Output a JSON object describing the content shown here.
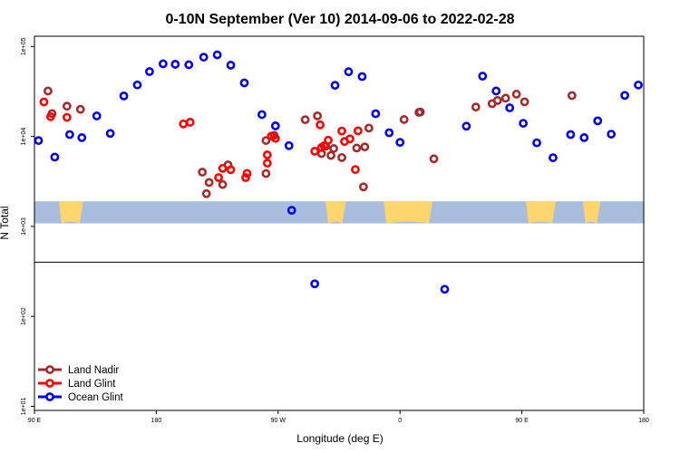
{
  "chart_data": {
    "type": "scatter",
    "title": "0-10N September (Ver 10)   2014-09-06 to 2022-02-28",
    "xlabel": "Longitude (deg E)",
    "ylabel": "N Total",
    "x_tick_labels": [
      "90 E",
      "180",
      "90 W",
      "0",
      "90 E",
      "180"
    ],
    "x_tick_positions_deg_e": [
      90,
      180,
      270,
      360,
      450,
      540
    ],
    "xlim": [
      90,
      540
    ],
    "y_scale": "log",
    "ylim": [
      9,
      130000
    ],
    "y_tick_labels": [
      "1e+01",
      "1e+02",
      "1e+03",
      "1e+04",
      "1e+05"
    ],
    "y_tick_values": [
      10,
      100,
      1000,
      10000,
      100000
    ],
    "reference_line_y": 400,
    "band_y_range": [
      1080,
      1900
    ],
    "grid": false,
    "legend_position": "bottom-left",
    "colors": {
      "band": "#a9bddd",
      "land": "#ffd66e",
      "land_nadir": "#a52a2a",
      "land_glint": "#ff0000",
      "ocean_glint": "#0000ee"
    },
    "series": [
      {
        "name": "Land Nadir",
        "color": "#a52a2a",
        "points": [
          [
            103,
            17960
          ],
          [
            100,
            32000
          ],
          [
            114,
            21700
          ],
          [
            124,
            20000
          ],
          [
            217,
            2310
          ],
          [
            229,
            2920
          ],
          [
            219,
            3080
          ],
          [
            261,
            3870
          ],
          [
            214,
            4010
          ],
          [
            233,
            4830
          ],
          [
            333,
            2750
          ],
          [
            385,
            5640
          ],
          [
            317,
            5830
          ],
          [
            309,
            6150
          ],
          [
            302,
            6450
          ],
          [
            261,
            9010
          ],
          [
            267,
            10270
          ],
          [
            328,
            7430
          ],
          [
            311,
            7340
          ],
          [
            305,
            7780
          ],
          [
            290,
            15340
          ],
          [
            299,
            16930
          ],
          [
            334,
            7650
          ],
          [
            337,
            12390
          ],
          [
            363,
            15420
          ],
          [
            374,
            18540
          ],
          [
            375,
            18700
          ],
          [
            416,
            21230
          ],
          [
            428,
            23170
          ],
          [
            432,
            25090
          ],
          [
            438,
            26650
          ],
          [
            446,
            29510
          ],
          [
            452,
            24260
          ],
          [
            487,
            28480
          ]
        ],
        "note_x_order": "values listed as [longitude_deg_e, n_total]"
      },
      {
        "name": "Land Glint",
        "color": "#ff0000",
        "points": [
          [
            97,
            24200
          ],
          [
            102,
            16600
          ],
          [
            114,
            16300
          ],
          [
            200,
            13780
          ],
          [
            205,
            14380
          ],
          [
            226,
            3490
          ],
          [
            229,
            4420
          ],
          [
            247,
            3880
          ],
          [
            246,
            3490
          ],
          [
            235,
            4270
          ],
          [
            262,
            5040
          ],
          [
            262,
            6240
          ],
          [
            297,
            6850
          ],
          [
            302,
            7520
          ],
          [
            304,
            7880
          ],
          [
            265,
            10080
          ],
          [
            268,
            9530
          ],
          [
            327,
            4290
          ],
          [
            319,
            8780
          ],
          [
            323,
            9400
          ],
          [
            307,
            9070
          ],
          [
            301,
            13450
          ],
          [
            317,
            11490
          ],
          [
            329,
            11550
          ]
        ]
      }
    ],
    "legend": [
      "Land Nadir",
      "Land Glint",
      "Ocean Glint"
    ]
  }
}
